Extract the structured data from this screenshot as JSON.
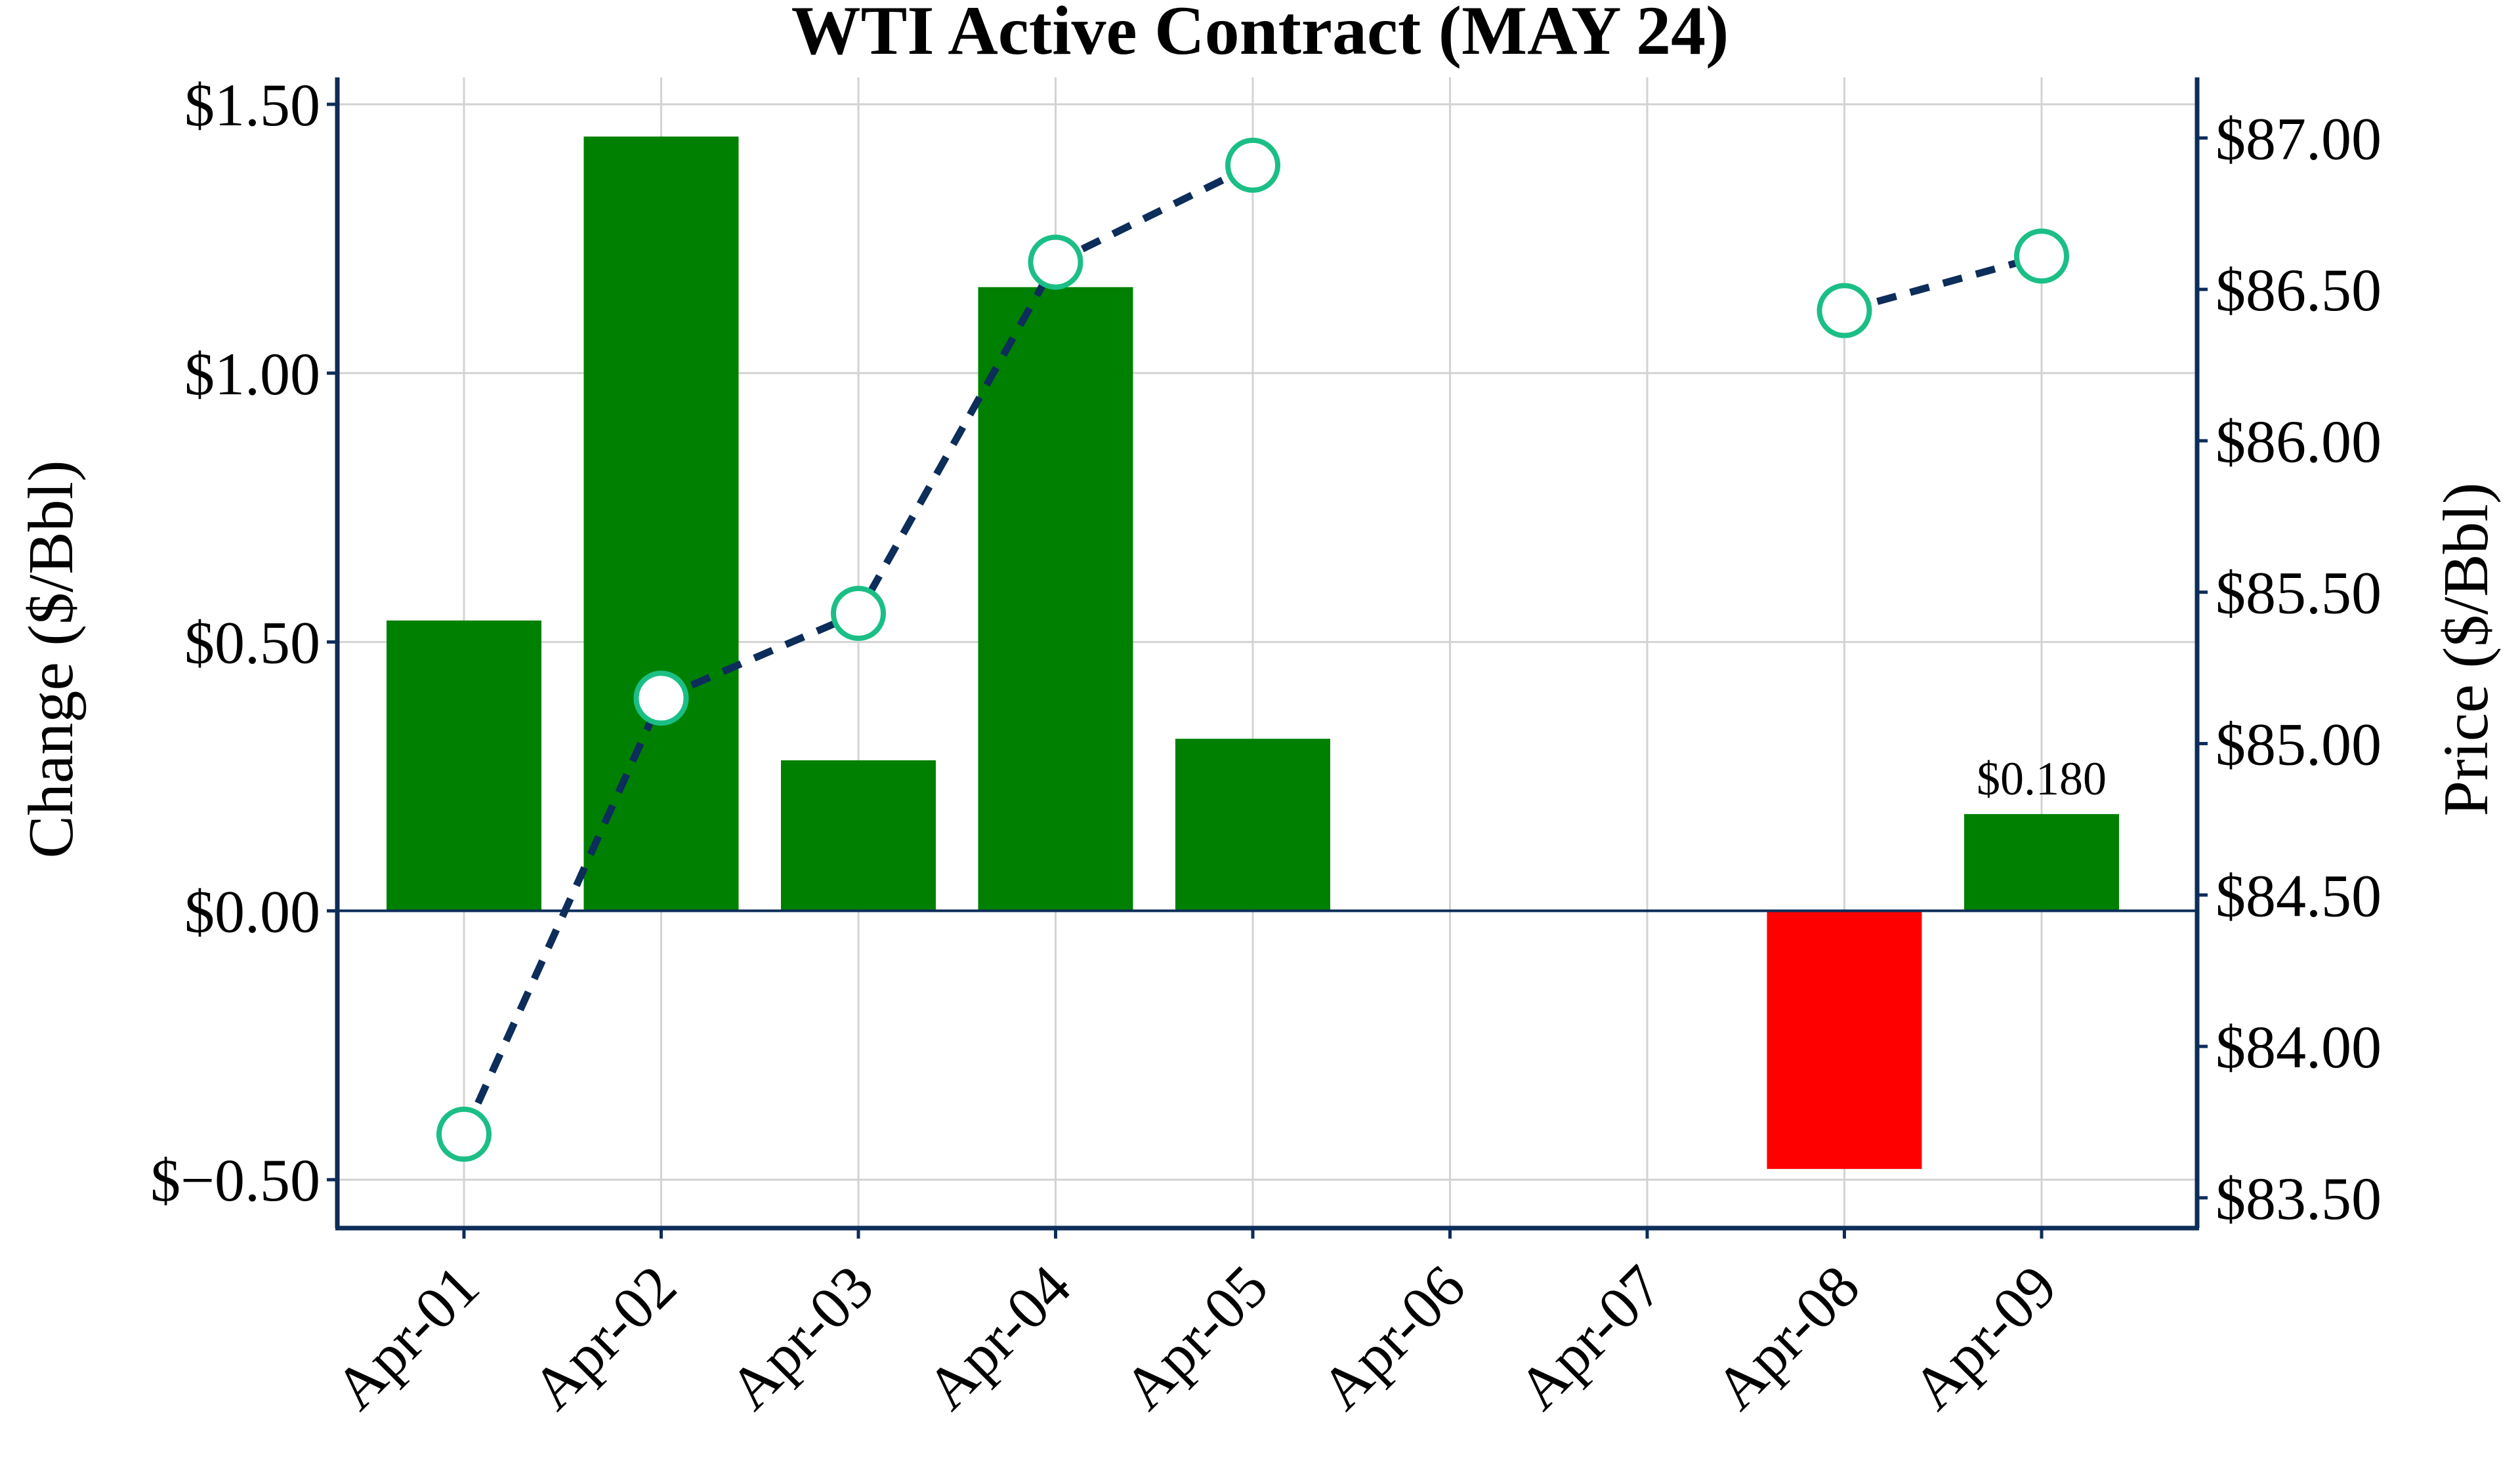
{
  "chart_data": {
    "type": "bar+line",
    "title": "WTI Active Contract (MAY 24)",
    "categories": [
      "Apr-01",
      "Apr-02",
      "Apr-03",
      "Apr-04",
      "Apr-05",
      "Apr-06",
      "Apr-07",
      "Apr-08",
      "Apr-09"
    ],
    "bar_series": {
      "values": [
        0.54,
        1.44,
        0.28,
        1.16,
        0.32,
        null,
        null,
        -0.48,
        0.18
      ],
      "positive_color": "#008000",
      "negative_color": "#ff0000"
    },
    "line_series": {
      "values": [
        83.71,
        85.15,
        85.43,
        86.59,
        86.91,
        null,
        null,
        86.43,
        86.61
      ],
      "line_color": "#0d2d5a",
      "marker_edge_color": "#1bbf85",
      "marker_face_color": "#ffffff",
      "style": "dashed"
    },
    "ylabel_left": "Change ($/Bbl)",
    "ylabel_right": "Price ($/Bbl)",
    "ylim_left": [
      -0.59,
      1.55
    ],
    "ylim_right": [
      83.4,
      87.2
    ],
    "yticks_left": [
      -0.5,
      0.0,
      0.5,
      1.0,
      1.5
    ],
    "yticks_left_labels": [
      "$−0.50",
      "$0.00",
      "$0.50",
      "$1.00",
      "$1.50"
    ],
    "yticks_right": [
      83.5,
      84.0,
      84.5,
      85.0,
      85.5,
      86.0,
      86.5,
      87.0
    ],
    "yticks_right_labels": [
      "$83.50",
      "$84.00",
      "$84.50",
      "$85.00",
      "$85.50",
      "$86.00",
      "$86.50",
      "$87.00"
    ],
    "annotations": [
      {
        "category": "Apr-09",
        "value": 0.18,
        "text": "$0.180"
      }
    ],
    "grid": true,
    "axis_color": "#0d2d5a",
    "grid_color": "#d3d3d3"
  }
}
